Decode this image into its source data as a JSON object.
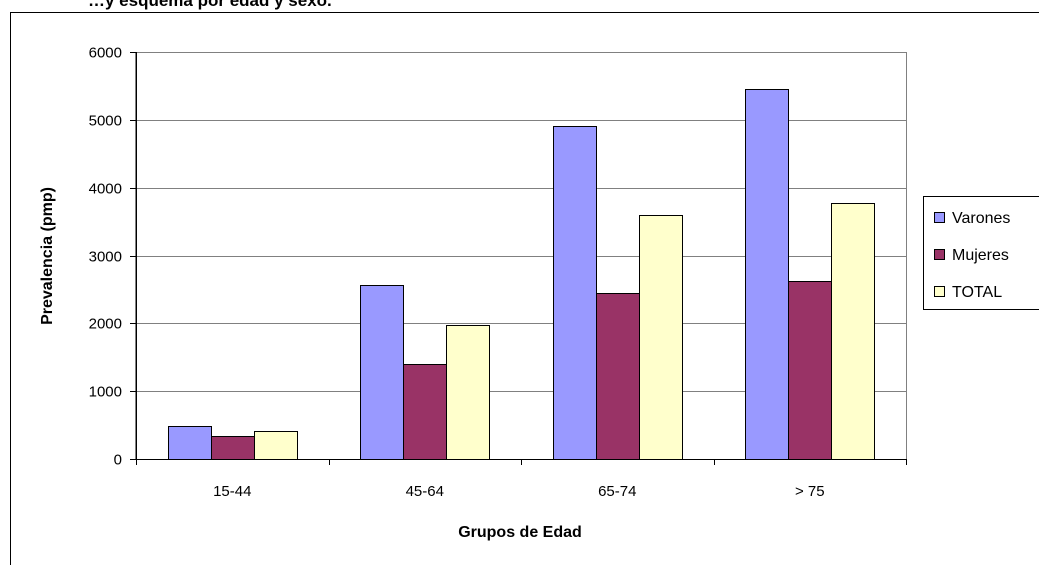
{
  "chart_data": {
    "type": "bar",
    "title": "…y esquema por edad y sexo.",
    "xlabel": "Grupos de Edad",
    "ylabel": "Prevalencia (pmp)",
    "categories": [
      "15-44",
      "45-64",
      "65-74",
      "> 75"
    ],
    "series": [
      {
        "name": "Varones",
        "color": "#9999ff",
        "values": [
          480,
          2570,
          4910,
          5450
        ]
      },
      {
        "name": "Mujeres",
        "color": "#993366",
        "values": [
          340,
          1400,
          2450,
          2620
        ]
      },
      {
        "name": "TOTAL",
        "color": "#ffffcc",
        "values": [
          420,
          1970,
          3600,
          3770
        ]
      }
    ],
    "ylim": [
      0,
      6000
    ],
    "yticks": [
      "0",
      "1000",
      "2000",
      "3000",
      "4000",
      "5000",
      "6000"
    ],
    "grid": true,
    "legend_position": "right"
  }
}
